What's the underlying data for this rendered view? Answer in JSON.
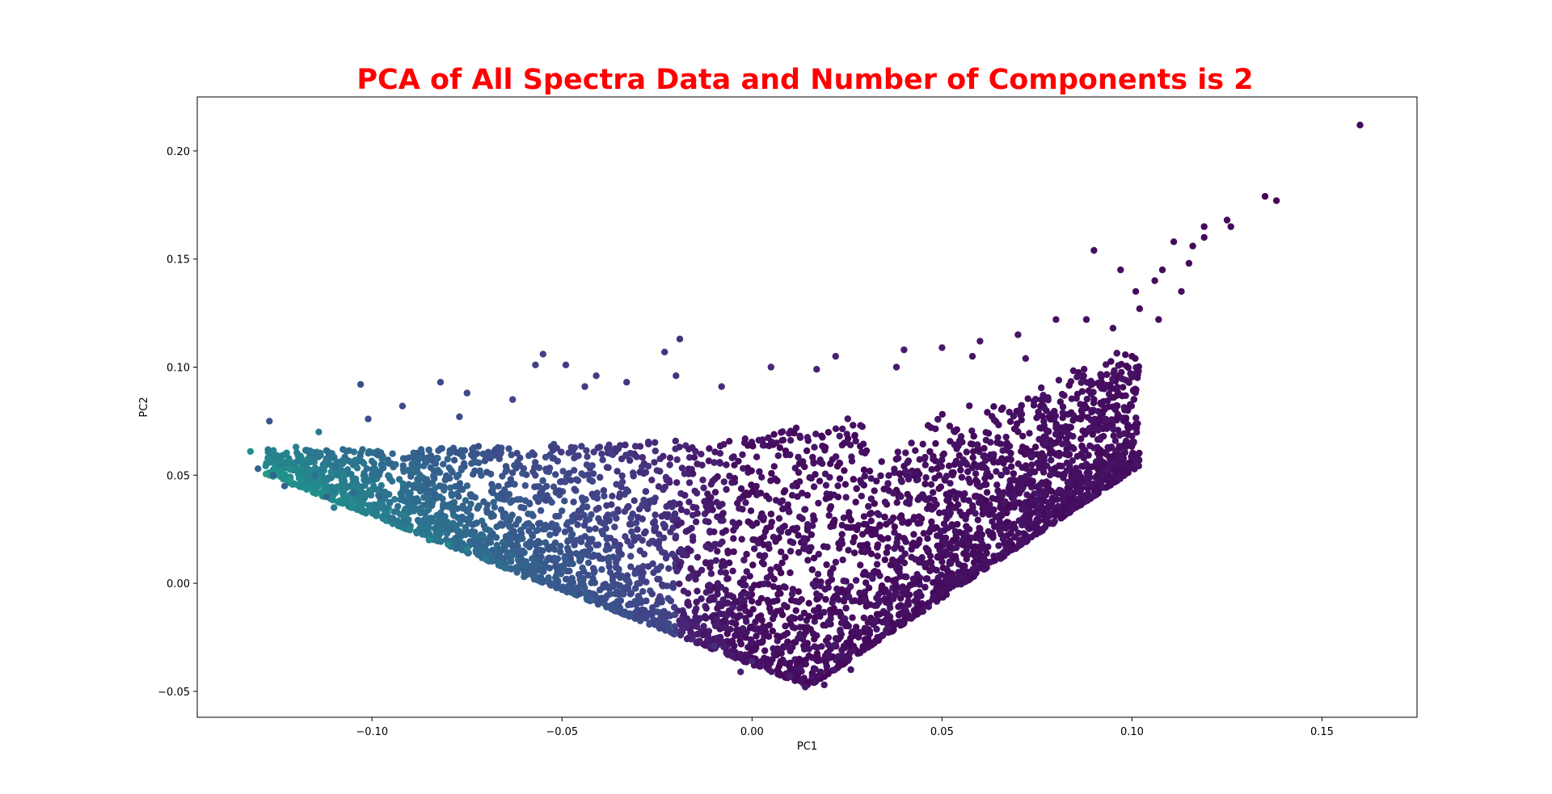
{
  "colors": {
    "title": "#ff0000",
    "axes": "#000000",
    "colormap": "viridis"
  },
  "chart_data": {
    "type": "scatter",
    "title": "PCA of All Spectra Data and Number of Components is 2",
    "xlabel": "PC1",
    "ylabel": "PC2",
    "xlim": [
      -0.146,
      0.175
    ],
    "ylim": [
      -0.062,
      0.225
    ],
    "grid": false,
    "legend": "none",
    "xticks": [
      -0.1,
      -0.05,
      0.0,
      0.05,
      0.1,
      0.15
    ],
    "xtick_labels": [
      "−0.10",
      "−0.05",
      "0.00",
      "0.05",
      "0.10",
      "0.15"
    ],
    "yticks": [
      -0.05,
      0.0,
      0.05,
      0.1,
      0.15,
      0.2
    ],
    "ytick_labels": [
      "−0.05",
      "0.00",
      "0.05",
      "0.10",
      "0.15",
      "0.20"
    ],
    "color_encoding": "viridis, increasing toward negative PC1",
    "points": [
      {
        "x": 0.16,
        "y": 0.212,
        "c": 0.02
      },
      {
        "x": 0.135,
        "y": 0.179,
        "c": 0.02
      },
      {
        "x": 0.138,
        "y": 0.177,
        "c": 0.02
      },
      {
        "x": 0.125,
        "y": 0.168,
        "c": 0.03
      },
      {
        "x": 0.126,
        "y": 0.165,
        "c": 0.03
      },
      {
        "x": 0.119,
        "y": 0.165,
        "c": 0.03
      },
      {
        "x": 0.111,
        "y": 0.158,
        "c": 0.04
      },
      {
        "x": 0.119,
        "y": 0.16,
        "c": 0.03
      },
      {
        "x": 0.116,
        "y": 0.156,
        "c": 0.03
      },
      {
        "x": 0.09,
        "y": 0.154,
        "c": 0.05
      },
      {
        "x": 0.097,
        "y": 0.145,
        "c": 0.05
      },
      {
        "x": 0.108,
        "y": 0.145,
        "c": 0.04
      },
      {
        "x": 0.106,
        "y": 0.14,
        "c": 0.04
      },
      {
        "x": 0.115,
        "y": 0.148,
        "c": 0.04
      },
      {
        "x": 0.113,
        "y": 0.135,
        "c": 0.04
      },
      {
        "x": 0.101,
        "y": 0.135,
        "c": 0.04
      },
      {
        "x": 0.107,
        "y": 0.122,
        "c": 0.04
      },
      {
        "x": 0.102,
        "y": 0.127,
        "c": 0.04
      },
      {
        "x": 0.088,
        "y": 0.122,
        "c": 0.05
      },
      {
        "x": 0.08,
        "y": 0.122,
        "c": 0.06
      },
      {
        "x": 0.07,
        "y": 0.115,
        "c": 0.07
      },
      {
        "x": 0.095,
        "y": 0.118,
        "c": 0.05
      },
      {
        "x": 0.06,
        "y": 0.112,
        "c": 0.08
      },
      {
        "x": 0.04,
        "y": 0.108,
        "c": 0.1
      },
      {
        "x": 0.022,
        "y": 0.105,
        "c": 0.12
      },
      {
        "x": 0.005,
        "y": 0.1,
        "c": 0.14
      },
      {
        "x": 0.017,
        "y": 0.099,
        "c": 0.12
      },
      {
        "x": 0.038,
        "y": 0.1,
        "c": 0.1
      },
      {
        "x": 0.05,
        "y": 0.109,
        "c": 0.09
      },
      {
        "x": 0.058,
        "y": 0.105,
        "c": 0.08
      },
      {
        "x": 0.072,
        "y": 0.104,
        "c": 0.07
      },
      {
        "x": -0.019,
        "y": 0.113,
        "c": 0.18
      },
      {
        "x": -0.023,
        "y": 0.107,
        "c": 0.19
      },
      {
        "x": -0.055,
        "y": 0.106,
        "c": 0.24
      },
      {
        "x": -0.049,
        "y": 0.101,
        "c": 0.23
      },
      {
        "x": -0.057,
        "y": 0.101,
        "c": 0.24
      },
      {
        "x": -0.008,
        "y": 0.091,
        "c": 0.17
      },
      {
        "x": -0.044,
        "y": 0.091,
        "c": 0.22
      },
      {
        "x": -0.041,
        "y": 0.096,
        "c": 0.22
      },
      {
        "x": -0.033,
        "y": 0.093,
        "c": 0.21
      },
      {
        "x": -0.02,
        "y": 0.096,
        "c": 0.19
      },
      {
        "x": -0.103,
        "y": 0.092,
        "c": 0.3
      },
      {
        "x": -0.082,
        "y": 0.093,
        "c": 0.28
      },
      {
        "x": -0.075,
        "y": 0.088,
        "c": 0.27
      },
      {
        "x": -0.063,
        "y": 0.085,
        "c": 0.26
      },
      {
        "x": -0.092,
        "y": 0.082,
        "c": 0.29
      },
      {
        "x": -0.127,
        "y": 0.075,
        "c": 0.33
      },
      {
        "x": -0.101,
        "y": 0.076,
        "c": 0.3
      },
      {
        "x": -0.077,
        "y": 0.077,
        "c": 0.28
      },
      {
        "x": -0.114,
        "y": 0.07,
        "c": 0.52
      },
      {
        "x": -0.132,
        "y": 0.061,
        "c": 0.62
      },
      {
        "x": -0.12,
        "y": 0.063,
        "c": 0.55
      },
      {
        "x": -0.13,
        "y": 0.053,
        "c": 0.4
      },
      {
        "x": -0.126,
        "y": 0.05,
        "c": 0.4
      },
      {
        "x": -0.123,
        "y": 0.045,
        "c": 0.4
      },
      {
        "x": -0.115,
        "y": 0.05,
        "c": 0.45
      },
      {
        "x": -0.108,
        "y": 0.048,
        "c": 0.55
      },
      {
        "x": -0.112,
        "y": 0.04,
        "c": 0.4
      },
      {
        "x": -0.105,
        "y": 0.042,
        "c": 0.45
      },
      {
        "x": -0.11,
        "y": 0.035,
        "c": 0.52
      },
      {
        "x": -0.098,
        "y": 0.04,
        "c": 0.42
      },
      {
        "x": -0.095,
        "y": 0.03,
        "c": 0.48
      },
      {
        "x": -0.09,
        "y": 0.025,
        "c": 0.55
      },
      {
        "x": -0.085,
        "y": 0.02,
        "c": 0.58
      },
      {
        "x": -0.08,
        "y": 0.018,
        "c": 0.58
      },
      {
        "x": -0.075,
        "y": 0.016,
        "c": 0.55
      },
      {
        "x": -0.07,
        "y": 0.012,
        "c": 0.5
      },
      {
        "x": -0.065,
        "y": 0.007,
        "c": 0.45
      },
      {
        "x": -0.06,
        "y": 0.003,
        "c": 0.4
      },
      {
        "x": -0.05,
        "y": -0.003,
        "c": 0.35
      },
      {
        "x": -0.04,
        "y": -0.009,
        "c": 0.3
      },
      {
        "x": -0.03,
        "y": -0.015,
        "c": 0.25
      },
      {
        "x": -0.02,
        "y": -0.022,
        "c": 0.22
      },
      {
        "x": -0.01,
        "y": -0.029,
        "c": 0.18
      },
      {
        "x": 0.0,
        "y": -0.036,
        "c": 0.14
      },
      {
        "x": 0.01,
        "y": -0.043,
        "c": 0.1
      },
      {
        "x": 0.014,
        "y": -0.048,
        "c": 0.08
      },
      {
        "x": -0.003,
        "y": -0.041,
        "c": 0.12
      },
      {
        "x": 0.019,
        "y": -0.047,
        "c": 0.07
      },
      {
        "x": 0.026,
        "y": -0.04,
        "c": 0.06
      },
      {
        "x": 0.033,
        "y": -0.025,
        "c": 0.05
      },
      {
        "x": 0.045,
        "y": -0.013,
        "c": 0.06
      },
      {
        "x": 0.04,
        "y": -0.005,
        "c": 0.05
      },
      {
        "x": 0.05,
        "y": 0.01,
        "c": 0.05
      },
      {
        "x": 0.06,
        "y": 0.025,
        "c": 0.05
      },
      {
        "x": 0.07,
        "y": 0.045,
        "c": 0.05
      },
      {
        "x": 0.08,
        "y": 0.065,
        "c": 0.04
      },
      {
        "x": 0.09,
        "y": 0.085,
        "c": 0.04
      },
      {
        "x": 0.1,
        "y": 0.105,
        "c": 0.04
      }
    ],
    "density_regions": [
      {
        "x_range": [
          -0.12,
          0.13
        ],
        "note": "dense wedge-shaped cloud between lower-left edge and right upper edge"
      }
    ]
  }
}
